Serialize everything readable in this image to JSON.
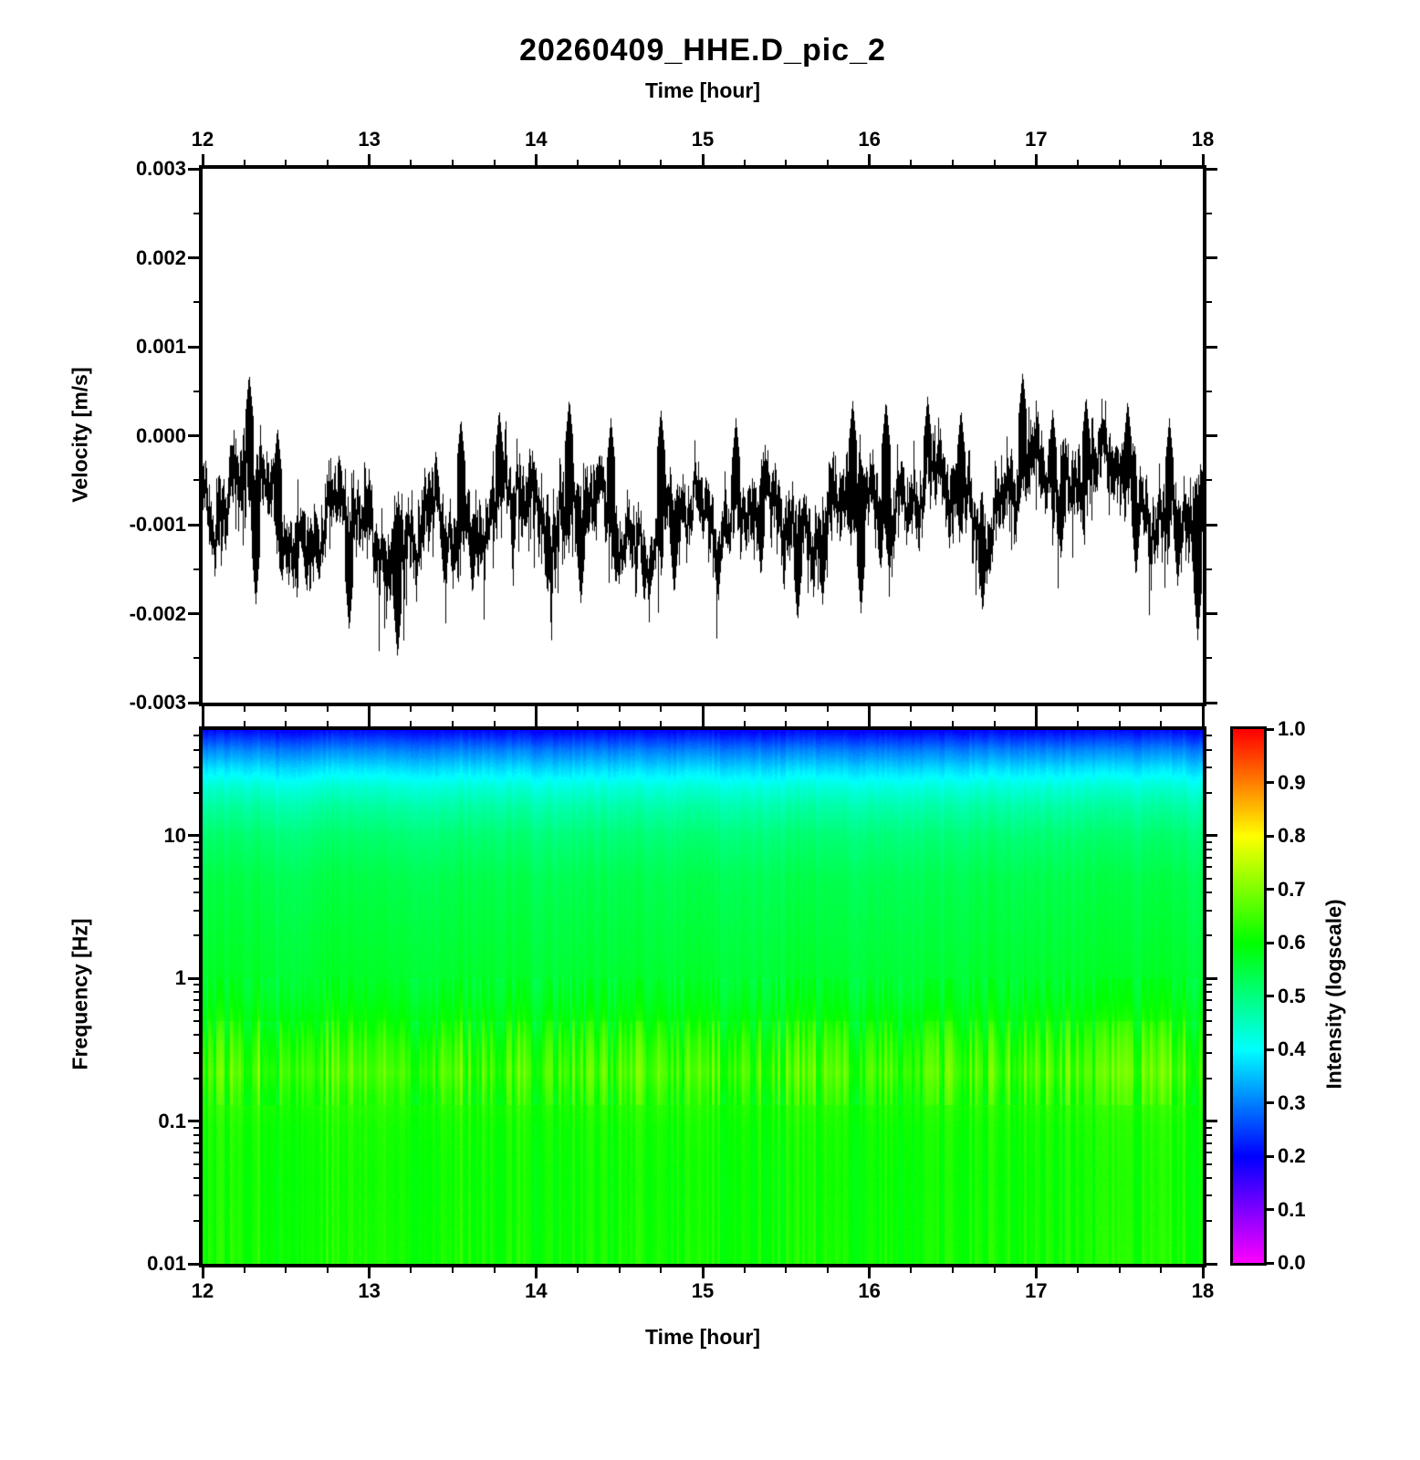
{
  "title": "20260409_HHE.D_pic_2",
  "axes": {
    "top_time_label": "Time [hour]",
    "bottom_time_label": "Time [hour]",
    "velocity_label": "Velocity [m/s]",
    "frequency_label": "Frequency [Hz]",
    "colorbar_label": "Intensity (logscale)"
  },
  "chart_data": [
    {
      "type": "line",
      "name": "seismogram",
      "title": "20260409_HHE.D_pic_2",
      "xlabel": "Time [hour]",
      "ylabel": "Velocity [m/s]",
      "xlim": [
        12,
        18
      ],
      "ylim": [
        -0.003,
        0.003
      ],
      "xticks": [
        12,
        13,
        14,
        15,
        16,
        17,
        18
      ],
      "xtick_labels": [
        "12",
        "13",
        "14",
        "15",
        "16",
        "17",
        "18"
      ],
      "x_minor_step": 0.25,
      "yticks": [
        0.003,
        0.002,
        0.001,
        0,
        -0.001,
        -0.002,
        -0.003
      ],
      "ytick_labels": [
        "0.003",
        "0.002",
        "0.001",
        "0.000",
        "-0.001",
        "-0.002",
        "-0.003"
      ],
      "y_minor_step": 0.0005,
      "line_color": "#000000",
      "grid": false,
      "legend": false,
      "envelope": {
        "t": [
          12.0,
          12.25,
          12.5,
          12.75,
          13.0,
          13.25,
          13.5,
          13.75,
          14.0,
          14.25,
          14.5,
          14.75,
          15.0,
          15.25,
          15.5,
          15.75,
          16.0,
          16.25,
          16.5,
          16.75,
          17.0,
          17.25,
          17.5,
          17.75,
          18.0
        ],
        "mean": [
          -0.0007,
          -0.0005,
          -0.0011,
          -0.001,
          -0.001,
          -0.0012,
          -0.001,
          -0.0008,
          -0.0008,
          -0.0008,
          -0.0011,
          -0.0011,
          -0.0009,
          -0.0008,
          -0.001,
          -0.0009,
          -0.0008,
          -0.0006,
          -0.0007,
          -0.0009,
          -0.0004,
          -0.0004,
          -0.0005,
          -0.0008,
          -0.0012
        ],
        "spread": [
          0.0004,
          0.0006,
          0.00045,
          0.0005,
          0.0005,
          0.00055,
          0.00045,
          0.0005,
          0.0005,
          0.00055,
          0.00045,
          0.0005,
          0.00045,
          0.00045,
          0.0005,
          0.00055,
          0.0005,
          0.0005,
          0.0005,
          0.0005,
          0.00055,
          0.0005,
          0.00045,
          0.0005,
          0.00055
        ]
      },
      "extreme_dips": [
        [
          12.32,
          -0.0019
        ],
        [
          12.62,
          -0.0017
        ],
        [
          12.88,
          -0.0022
        ],
        [
          13.17,
          -0.0025
        ],
        [
          13.45,
          -0.0017
        ],
        [
          13.62,
          -0.0018
        ],
        [
          14.07,
          -0.0018
        ],
        [
          14.27,
          -0.0019
        ],
        [
          14.48,
          -0.0017
        ],
        [
          14.65,
          -0.0019
        ],
        [
          14.83,
          -0.0018
        ],
        [
          15.1,
          -0.0017
        ],
        [
          15.35,
          -0.0016
        ],
        [
          15.57,
          -0.0021
        ],
        [
          15.72,
          -0.0019
        ],
        [
          15.95,
          -0.002
        ],
        [
          16.12,
          -0.0016
        ],
        [
          16.68,
          -0.002
        ],
        [
          17.15,
          -0.0014
        ],
        [
          17.6,
          -0.0016
        ],
        [
          17.85,
          -0.0017
        ],
        [
          17.97,
          -0.0023
        ]
      ],
      "extreme_peaks": [
        [
          12.28,
          0.0007
        ],
        [
          12.45,
          0.0001
        ],
        [
          13.55,
          0.0002
        ],
        [
          13.78,
          0.0003
        ],
        [
          14.2,
          0.00042
        ],
        [
          14.45,
          0.0002
        ],
        [
          14.75,
          0.0003
        ],
        [
          15.2,
          0.0002
        ],
        [
          15.9,
          0.0004
        ],
        [
          16.1,
          0.0004
        ],
        [
          16.35,
          0.00045
        ],
        [
          16.55,
          0.0003
        ],
        [
          16.92,
          0.00072
        ],
        [
          17.1,
          0.0003
        ],
        [
          17.3,
          0.00045
        ],
        [
          17.55,
          0.0004
        ],
        [
          17.8,
          0.0002
        ]
      ]
    },
    {
      "type": "heatmap",
      "name": "spectrogram",
      "xlabel": "Time [hour]",
      "ylabel": "Frequency [Hz]",
      "yscale": "log",
      "xlim": [
        12,
        18
      ],
      "ylim": [
        0.01,
        55
      ],
      "xticks": [
        12,
        13,
        14,
        15,
        16,
        17,
        18
      ],
      "xtick_labels": [
        "12",
        "13",
        "14",
        "15",
        "16",
        "17",
        "18"
      ],
      "x_minor_step": 0.25,
      "yticks": [
        10,
        1,
        0.1,
        0.01
      ],
      "ytick_labels": [
        "10",
        "1",
        "0.1",
        "0.01"
      ],
      "colormap": "rainbow (0=magenta, 0.2=blue, 0.4=cyan, 0.6=green, 0.8=yellow, 1=red)",
      "intensity_profile": {
        "freq_hz": [
          55,
          40,
          30,
          22,
          16,
          10,
          5,
          2,
          1,
          0.7,
          0.5,
          0.35,
          0.22,
          0.15,
          0.09,
          0.04,
          0.01
        ],
        "intensity": [
          0.2,
          0.3,
          0.37,
          0.43,
          0.47,
          0.51,
          0.54,
          0.555,
          0.565,
          0.58,
          0.6,
          0.63,
          0.655,
          0.63,
          0.615,
          0.61,
          0.615
        ]
      },
      "striation_bands": [
        {
          "f_min": 0.13,
          "f_max": 0.5,
          "amplitude": 0.12
        },
        {
          "f_min": 0.5,
          "f_max": 1.0,
          "amplitude": 0.06
        },
        {
          "f_min": 0.01,
          "f_max": 0.13,
          "amplitude": 0.05
        }
      ],
      "base_striation_amplitude": 0.02,
      "colorbar": {
        "label": "Intensity (logscale)",
        "min": 0.0,
        "max": 1.0,
        "tick_step": 0.1,
        "tick_labels": [
          "1.0",
          "0.9",
          "0.8",
          "0.7",
          "0.6",
          "0.5",
          "0.4",
          "0.3",
          "0.2",
          "0.1",
          "0.0"
        ]
      }
    }
  ]
}
